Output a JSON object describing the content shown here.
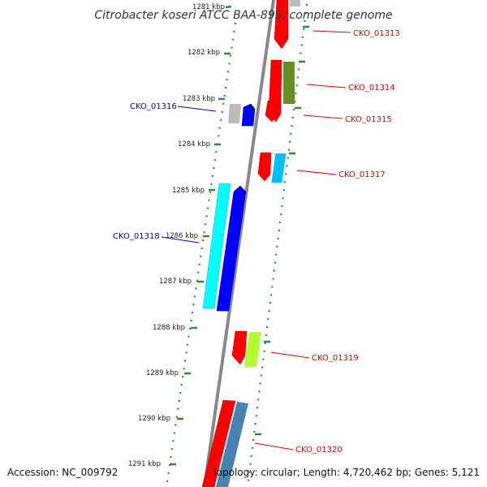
{
  "title": "Citrobacter koseri ATCC BAA-895, complete genome",
  "footer": {
    "accession": "Accession: NC_009792",
    "summary": "Topology: circular; Length: 4,720,462 bp; Genes: 5,121"
  },
  "ruler": {
    "ticks": [
      "1281 kbp",
      "1282 kbp",
      "1283 kbp",
      "1284 kbp",
      "1285 kbp",
      "1286 kbp",
      "1287 kbp",
      "1288 kbp",
      "1289 kbp",
      "1290 kbp",
      "1291 kbp"
    ]
  },
  "colors": {
    "backbone": "#888888",
    "ring_dots": "#2e8b2e",
    "forward_label": "#dd0000",
    "reverse_label": "#0000cc"
  },
  "genes": [
    {
      "label": "CKO_01313",
      "strand": "forward",
      "color": "#ff0000"
    },
    {
      "label": "CKO_01314",
      "strand": "forward",
      "color": "#ff0000"
    },
    {
      "label": "CKO_01315",
      "strand": "forward",
      "color": "#ff0000"
    },
    {
      "label": "CKO_01316",
      "strand": "reverse",
      "color": "#0000ff"
    },
    {
      "label": "CKO_01317",
      "strand": "forward",
      "color": "#ff0000"
    },
    {
      "label": "CKO_01318",
      "strand": "reverse",
      "color": "#0000ff"
    },
    {
      "label": "CKO_01319",
      "strand": "forward",
      "color": "#ff0000"
    },
    {
      "label": "CKO_01320",
      "strand": "forward",
      "color": "#ff0000"
    }
  ]
}
